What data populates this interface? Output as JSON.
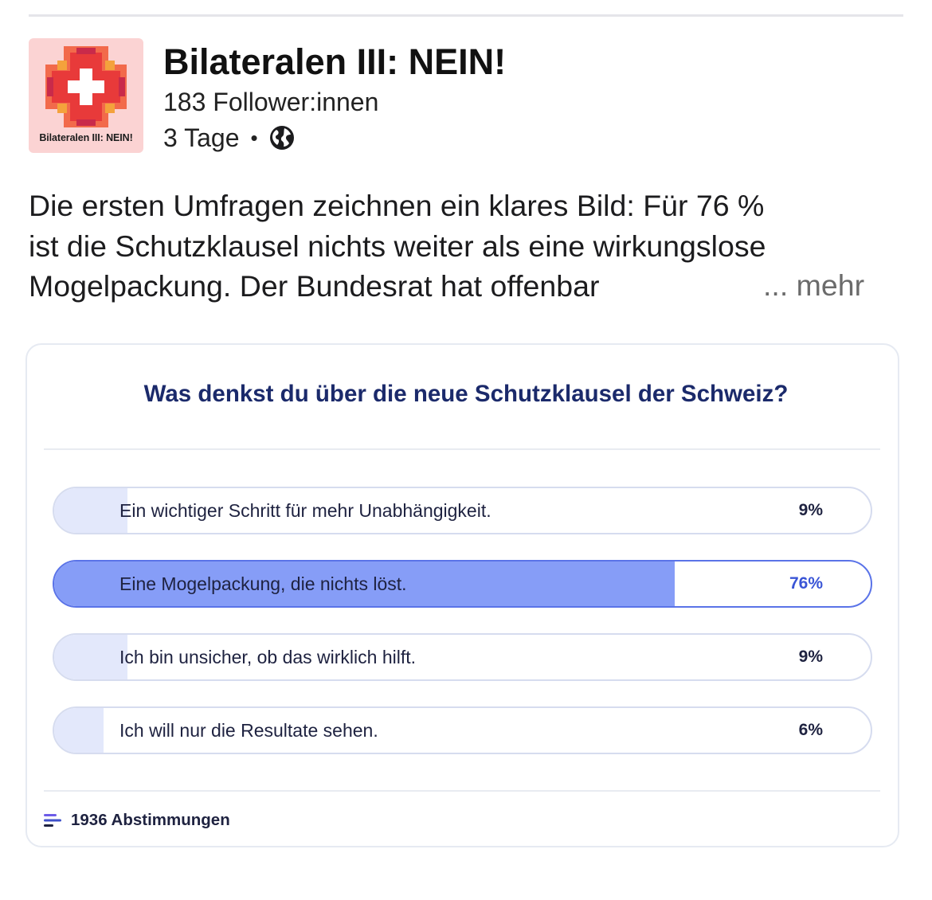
{
  "post": {
    "page_name": "Bilateralen III: NEIN!",
    "followers": "183 Follower:innen",
    "age": "3 Tage",
    "separator": "•",
    "visibility_icon": "globe-icon",
    "avatar_caption": "Bilateralen III: NEIN!",
    "text_lines": [
      "Die ersten Umfragen zeichnen ein klares Bild: Für 76 %",
      "ist die Schutzklausel nichts weiter als eine wirkungslose",
      "Mogelpackung. Der Bundesrat hat offenbar"
    ],
    "more_label": "... mehr"
  },
  "poll": {
    "question": "Was denkst du über die neue Schutzklausel der Schweiz?",
    "options": [
      {
        "label": "Ein wichtiger Schritt für mehr Unabhängigkeit.",
        "percent_label": "9%",
        "percent": 9,
        "selected": false
      },
      {
        "label": "Eine Mogelpackung, die nichts löst.",
        "percent_label": "76%",
        "percent": 76,
        "selected": true
      },
      {
        "label": "Ich bin unsicher, ob das wirklich hilft.",
        "percent_label": "9%",
        "percent": 9,
        "selected": false
      },
      {
        "label": "Ich will nur die Resultate sehen.",
        "percent_label": "6%",
        "percent": 6,
        "selected": false
      }
    ],
    "votes_label": "1936 Abstimmungen",
    "votes_icon": "bars-icon"
  },
  "colors": {
    "accent": "#5a73e8",
    "selected_fill": "#869df7",
    "unselected_fill": "#e3e8fb",
    "question_text": "#1b2a6b"
  }
}
